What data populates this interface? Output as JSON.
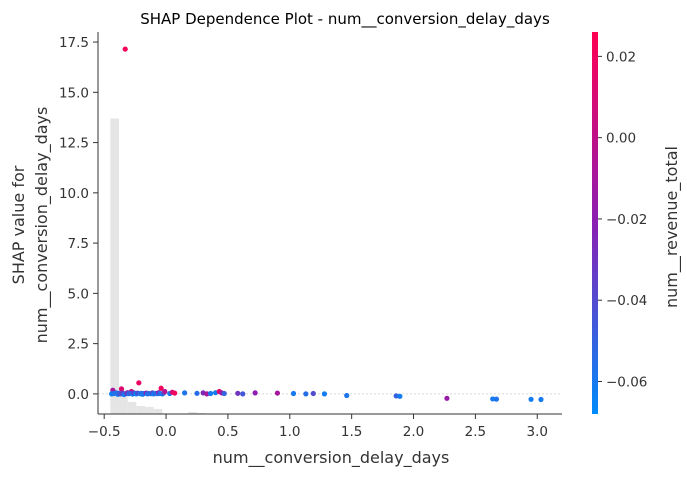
{
  "chart_data": {
    "type": "scatter",
    "title": "SHAP Dependence Plot - num__conversion_delay_days",
    "xlabel": "num__conversion_delay_days",
    "ylabel_lines": [
      "SHAP value for",
      "num__conversion_delay_days"
    ],
    "color_label": "num__revenue_total",
    "xlim": [
      -0.55,
      3.2
    ],
    "ylim": [
      -1.0,
      18.0
    ],
    "x_ticks": [
      -0.5,
      0.0,
      0.5,
      1.0,
      1.5,
      2.0,
      2.5,
      3.0
    ],
    "x_tick_labels": [
      "−0.5",
      "0.0",
      "0.5",
      "1.0",
      "1.5",
      "2.0",
      "2.5",
      "3.0"
    ],
    "y_ticks": [
      0.0,
      2.5,
      5.0,
      7.5,
      10.0,
      12.5,
      15.0,
      17.5
    ],
    "y_tick_labels": [
      "0.0",
      "2.5",
      "5.0",
      "7.5",
      "10.0",
      "12.5",
      "15.0",
      "17.5"
    ],
    "color_range": [
      -0.068,
      0.026
    ],
    "color_ticks": [
      -0.06,
      -0.04,
      -0.02,
      0.0,
      0.02
    ],
    "color_tick_labels": [
      "−0.06",
      "−0.04",
      "−0.02",
      "0.00",
      "0.02"
    ],
    "colors": {
      "low": "#008bfb",
      "mid": "#8a1fb3",
      "high": "#ff0052",
      "hist": "#e5e5e5",
      "zero_line": "#cccccc",
      "axis": "#333333"
    },
    "histogram": {
      "bin_start": -0.45,
      "bin_width": 0.07,
      "values": [
        14.7,
        1.2,
        0.6,
        0.4,
        0.35,
        0.25,
        0,
        0,
        0,
        0.1,
        0.05,
        0,
        0,
        0,
        0,
        0,
        0,
        0,
        0,
        0,
        0,
        0,
        0,
        0,
        0,
        0,
        0,
        0,
        0,
        0,
        0,
        0,
        0,
        0,
        0,
        0,
        0,
        0,
        0,
        0,
        0,
        0,
        0,
        0,
        0,
        0,
        0,
        0
      ]
    },
    "points": [
      {
        "x": -0.33,
        "y": 17.15,
        "c": 0.022
      },
      {
        "x": -0.22,
        "y": 0.55,
        "c": 0.018
      },
      {
        "x": -0.36,
        "y": 0.25,
        "c": 0.012
      },
      {
        "x": -0.04,
        "y": 0.28,
        "c": 0.02
      },
      {
        "x": -0.43,
        "y": 0.18,
        "c": -0.01
      },
      {
        "x": -0.28,
        "y": 0.12,
        "c": 0.005
      },
      {
        "x": -0.44,
        "y": 0.0,
        "c": -0.062
      },
      {
        "x": -0.42,
        "y": 0.02,
        "c": -0.058
      },
      {
        "x": -0.4,
        "y": 0.05,
        "c": -0.055
      },
      {
        "x": -0.39,
        "y": -0.02,
        "c": -0.06
      },
      {
        "x": -0.38,
        "y": 0.03,
        "c": -0.05
      },
      {
        "x": -0.37,
        "y": 0.0,
        "c": -0.045
      },
      {
        "x": -0.35,
        "y": 0.04,
        "c": -0.035
      },
      {
        "x": -0.34,
        "y": -0.03,
        "c": -0.06
      },
      {
        "x": -0.32,
        "y": 0.02,
        "c": -0.04
      },
      {
        "x": -0.31,
        "y": 0.06,
        "c": -0.025
      },
      {
        "x": -0.3,
        "y": 0.01,
        "c": -0.058
      },
      {
        "x": -0.29,
        "y": 0.03,
        "c": -0.048
      },
      {
        "x": -0.27,
        "y": -0.01,
        "c": -0.062
      },
      {
        "x": -0.26,
        "y": 0.05,
        "c": -0.03
      },
      {
        "x": -0.25,
        "y": 0.02,
        "c": -0.055
      },
      {
        "x": -0.24,
        "y": 0.0,
        "c": -0.064
      },
      {
        "x": -0.23,
        "y": 0.04,
        "c": -0.042
      },
      {
        "x": -0.21,
        "y": 0.01,
        "c": -0.06
      },
      {
        "x": -0.2,
        "y": 0.03,
        "c": -0.05
      },
      {
        "x": -0.19,
        "y": -0.02,
        "c": -0.063
      },
      {
        "x": -0.18,
        "y": 0.02,
        "c": -0.057
      },
      {
        "x": -0.16,
        "y": 0.04,
        "c": -0.02
      },
      {
        "x": -0.15,
        "y": 0.0,
        "c": -0.061
      },
      {
        "x": -0.14,
        "y": 0.02,
        "c": -0.052
      },
      {
        "x": -0.12,
        "y": 0.01,
        "c": -0.059
      },
      {
        "x": -0.11,
        "y": 0.05,
        "c": -0.038
      },
      {
        "x": -0.1,
        "y": 0.0,
        "c": -0.062
      },
      {
        "x": -0.08,
        "y": 0.03,
        "c": -0.047
      },
      {
        "x": -0.07,
        "y": 0.01,
        "c": -0.06
      },
      {
        "x": -0.06,
        "y": 0.06,
        "c": -0.015
      },
      {
        "x": -0.05,
        "y": 0.02,
        "c": -0.055
      },
      {
        "x": -0.03,
        "y": 0.0,
        "c": -0.063
      },
      {
        "x": -0.02,
        "y": 0.04,
        "c": -0.045
      },
      {
        "x": -0.01,
        "y": 0.12,
        "c": -0.005
      },
      {
        "x": 0.03,
        "y": 0.02,
        "c": -0.06
      },
      {
        "x": 0.05,
        "y": 0.08,
        "c": 0.01
      },
      {
        "x": 0.07,
        "y": 0.04,
        "c": 0.02
      },
      {
        "x": 0.15,
        "y": 0.05,
        "c": -0.058
      },
      {
        "x": 0.25,
        "y": 0.03,
        "c": -0.055
      },
      {
        "x": 0.3,
        "y": 0.05,
        "c": -0.025
      },
      {
        "x": 0.33,
        "y": 0.0,
        "c": -0.01
      },
      {
        "x": 0.36,
        "y": 0.02,
        "c": -0.06
      },
      {
        "x": 0.4,
        "y": 0.06,
        "c": -0.062
      },
      {
        "x": 0.43,
        "y": 0.12,
        "c": 0.015
      },
      {
        "x": 0.45,
        "y": 0.05,
        "c": -0.015
      },
      {
        "x": 0.47,
        "y": 0.02,
        "c": -0.05
      },
      {
        "x": 0.58,
        "y": 0.03,
        "c": -0.03
      },
      {
        "x": 0.62,
        "y": 0.0,
        "c": -0.045
      },
      {
        "x": 0.72,
        "y": 0.05,
        "c": -0.02
      },
      {
        "x": 0.9,
        "y": 0.04,
        "c": -0.01
      },
      {
        "x": 1.03,
        "y": 0.02,
        "c": -0.06
      },
      {
        "x": 1.13,
        "y": 0.0,
        "c": -0.055
      },
      {
        "x": 1.19,
        "y": 0.02,
        "c": -0.04
      },
      {
        "x": 1.28,
        "y": 0.0,
        "c": -0.062
      },
      {
        "x": 1.46,
        "y": -0.08,
        "c": -0.058
      },
      {
        "x": 1.86,
        "y": -0.1,
        "c": -0.05
      },
      {
        "x": 1.89,
        "y": -0.12,
        "c": -0.062
      },
      {
        "x": 2.27,
        "y": -0.22,
        "c": -0.015
      },
      {
        "x": 2.64,
        "y": -0.25,
        "c": -0.06
      },
      {
        "x": 2.67,
        "y": -0.26,
        "c": -0.058
      },
      {
        "x": 2.95,
        "y": -0.27,
        "c": -0.062
      },
      {
        "x": 3.03,
        "y": -0.28,
        "c": -0.06
      }
    ]
  }
}
